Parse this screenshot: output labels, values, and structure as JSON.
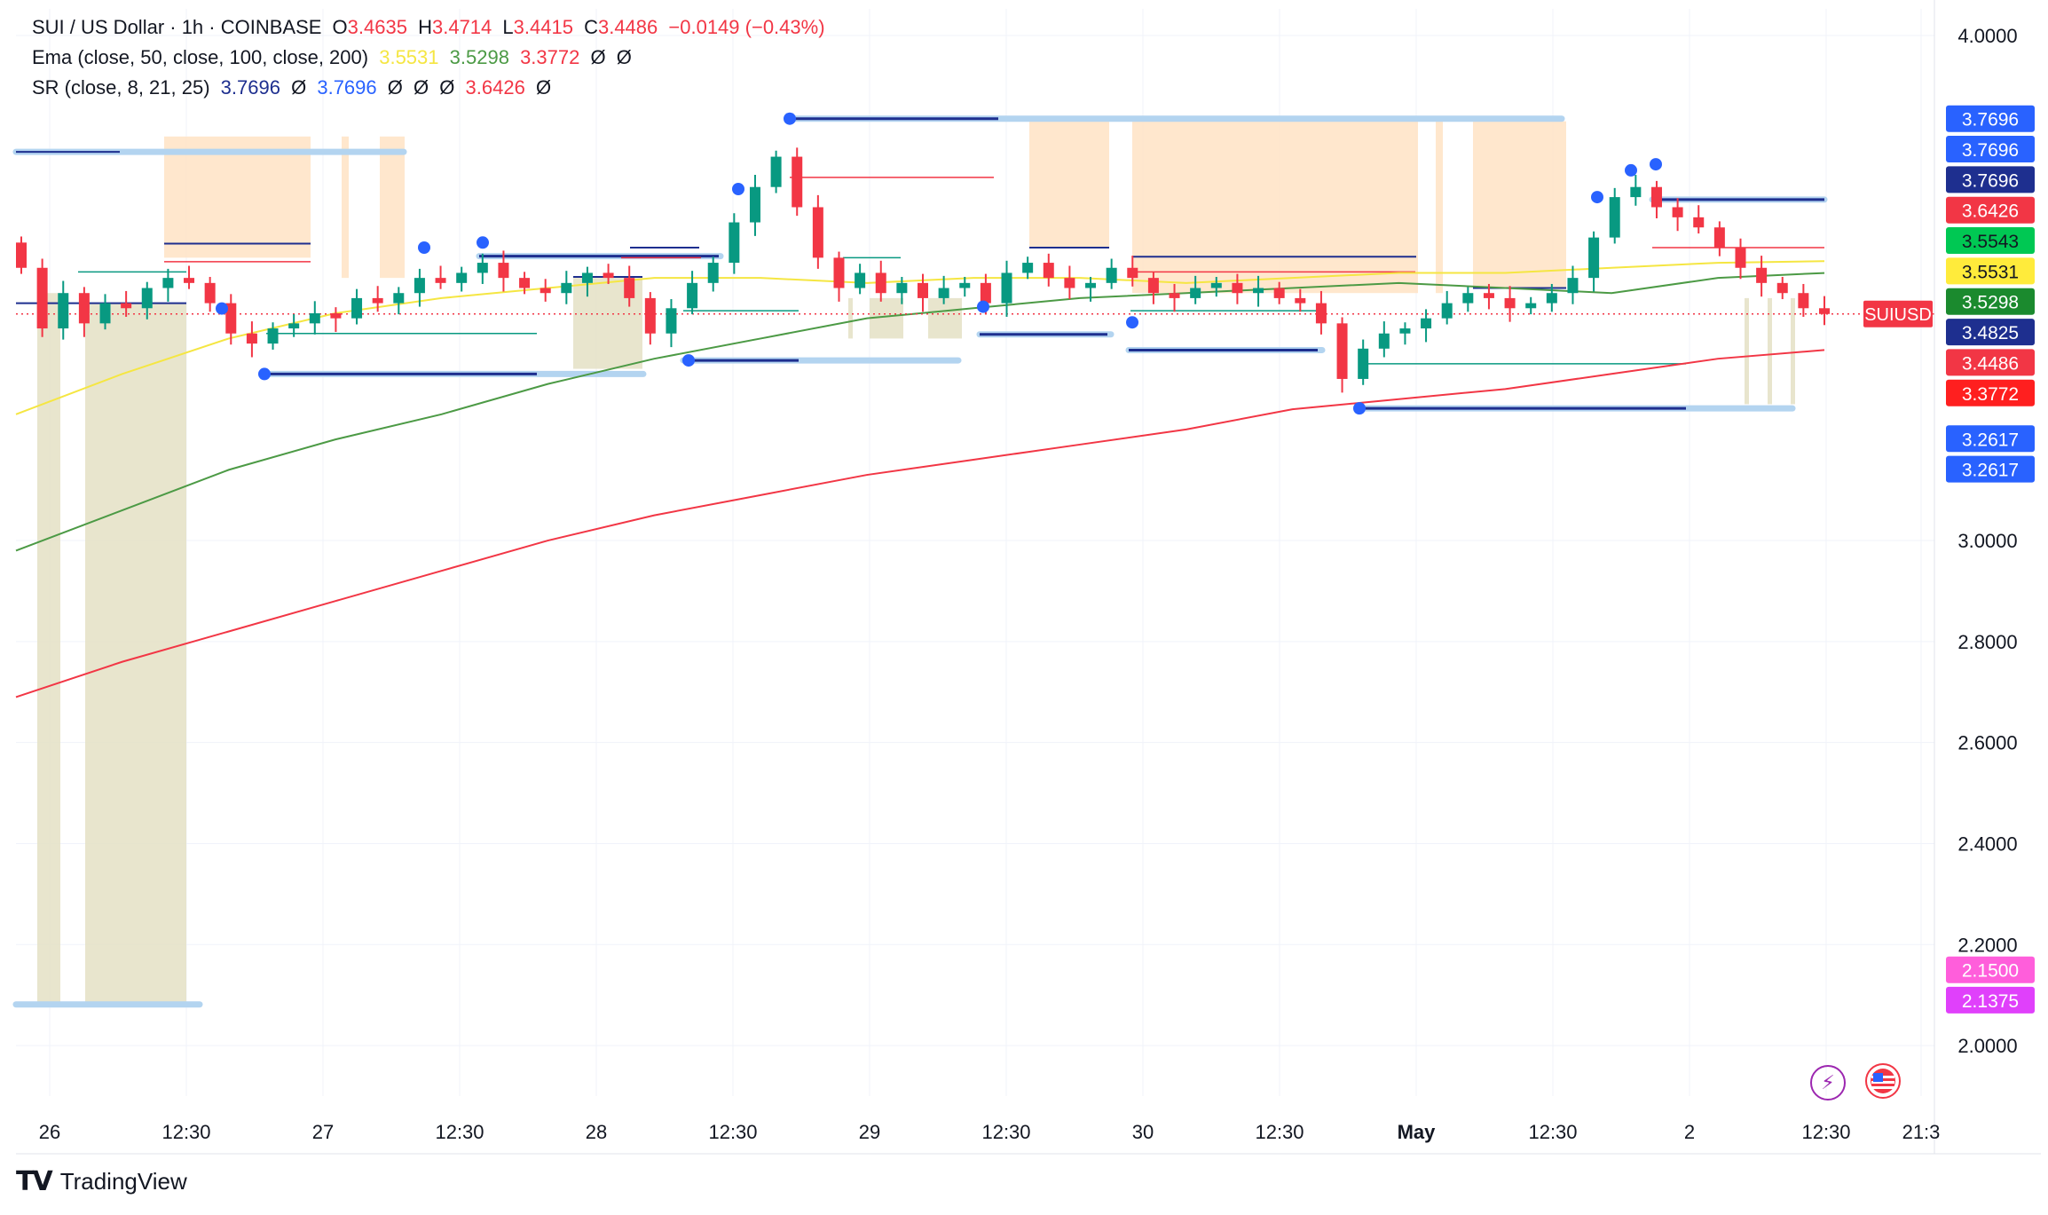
{
  "header": {
    "symbol_line": "SUI / US Dollar · 1h · COINBASE",
    "o_label": "O",
    "o": "3.4635",
    "h_label": "H",
    "h": "3.4714",
    "l_label": "L",
    "l": "3.4415",
    "c_label": "C",
    "c": "3.4486",
    "change": "−0.0149 (−0.43%)",
    "ema_label": "Ema (close, 50, close, 100, close, 200)",
    "ema_values": [
      "3.5531",
      "3.5298",
      "3.3772",
      "Ø",
      "Ø"
    ],
    "sr_label": "SR (close, 8, 21, 25)",
    "sr_values": [
      "3.7696",
      "Ø",
      "3.7696",
      "Ø",
      "Ø",
      "Ø",
      "3.6426",
      "Ø"
    ]
  },
  "colors": {
    "up": "#089981",
    "down": "#f23645",
    "ema50": "#f5e642",
    "ema100": "#4c9a45",
    "ema200": "#f23645",
    "sr_line": "#1e2f8f",
    "sr_band": "#b3d4f0",
    "sr_dot": "#2962ff",
    "zone_orange": "#ffe3c4",
    "zone_olive": "#e4e0c4"
  },
  "chart_data": {
    "type": "candlestick",
    "title": "SUI / US Dollar · 1h · COINBASE",
    "ylim": [
      1.9,
      4.0
    ],
    "y_ticks": [
      "4.0000",
      "3.0000",
      "2.8000",
      "2.6000",
      "2.4000",
      "2.2000",
      "2.0000"
    ],
    "x_ticks": [
      "26",
      "12:30",
      "27",
      "12:30",
      "28",
      "12:30",
      "29",
      "12:30",
      "30",
      "12:30",
      "May",
      "12:30",
      "2",
      "12:30",
      "21:3"
    ],
    "series": [
      {
        "name": "SUIUSD",
        "candles_close": [
          3.54,
          3.42,
          3.49,
          3.43,
          3.47,
          3.46,
          3.5,
          3.52,
          3.51,
          3.47,
          3.41,
          3.39,
          3.42,
          3.43,
          3.45,
          3.44,
          3.48,
          3.47,
          3.49,
          3.52,
          3.51,
          3.53,
          3.55,
          3.52,
          3.5,
          3.49,
          3.51,
          3.53,
          3.52,
          3.48,
          3.41,
          3.46,
          3.51,
          3.55,
          3.63,
          3.7,
          3.76,
          3.66,
          3.56,
          3.5,
          3.53,
          3.49,
          3.51,
          3.48,
          3.5,
          3.51,
          3.47,
          3.53,
          3.55,
          3.52,
          3.5,
          3.51,
          3.54,
          3.52,
          3.49,
          3.48,
          3.5,
          3.51,
          3.49,
          3.5,
          3.48,
          3.47,
          3.43,
          3.32,
          3.38,
          3.41,
          3.42,
          3.44,
          3.47,
          3.49,
          3.48,
          3.46,
          3.47,
          3.49,
          3.52,
          3.6,
          3.68,
          3.7,
          3.66,
          3.64,
          3.62,
          3.58,
          3.54,
          3.51,
          3.49,
          3.46,
          3.4486
        ]
      },
      {
        "name": "Ema 50",
        "values": [
          3.25,
          3.33,
          3.4,
          3.45,
          3.48,
          3.5,
          3.52,
          3.52,
          3.51,
          3.52,
          3.52,
          3.51,
          3.52,
          3.53,
          3.53,
          3.54,
          3.55,
          3.5531
        ]
      },
      {
        "name": "Ema 100",
        "values": [
          2.98,
          3.06,
          3.14,
          3.2,
          3.25,
          3.31,
          3.36,
          3.4,
          3.44,
          3.46,
          3.48,
          3.49,
          3.5,
          3.51,
          3.5,
          3.49,
          3.52,
          3.5298
        ]
      },
      {
        "name": "Ema 200",
        "values": [
          2.69,
          2.76,
          2.82,
          2.88,
          2.94,
          3.0,
          3.05,
          3.09,
          3.13,
          3.16,
          3.19,
          3.22,
          3.26,
          3.28,
          3.3,
          3.33,
          3.36,
          3.3772
        ]
      }
    ],
    "price_labels": [
      {
        "text": "3.7696",
        "color": "#2962ff"
      },
      {
        "text": "3.7696",
        "color": "#2962ff"
      },
      {
        "text": "3.7696",
        "color": "#1e2f8f"
      },
      {
        "text": "3.6426",
        "color": "#f23645"
      },
      {
        "text": "3.5543",
        "color": "#00c853"
      },
      {
        "text": "3.5531",
        "color": "#ffeb3b"
      },
      {
        "text": "3.5298",
        "color": "#1b8a2e"
      },
      {
        "text": "3.4825",
        "color": "#1e2f8f"
      },
      {
        "text": "3.4486",
        "color": "#f23645"
      },
      {
        "text": "3.3772",
        "color": "#ff1f1f"
      },
      {
        "text": "3.2617",
        "color": "#2962ff"
      },
      {
        "text": "3.2617",
        "color": "#2962ff"
      },
      {
        "text": "2.1500",
        "color": "#ff5edb"
      },
      {
        "text": "2.1375",
        "color": "#e040fb"
      }
    ],
    "symbol_tag": "SUIUSD",
    "current_price": 3.4486,
    "grid": true
  },
  "footer": {
    "brand": "TradingView"
  }
}
